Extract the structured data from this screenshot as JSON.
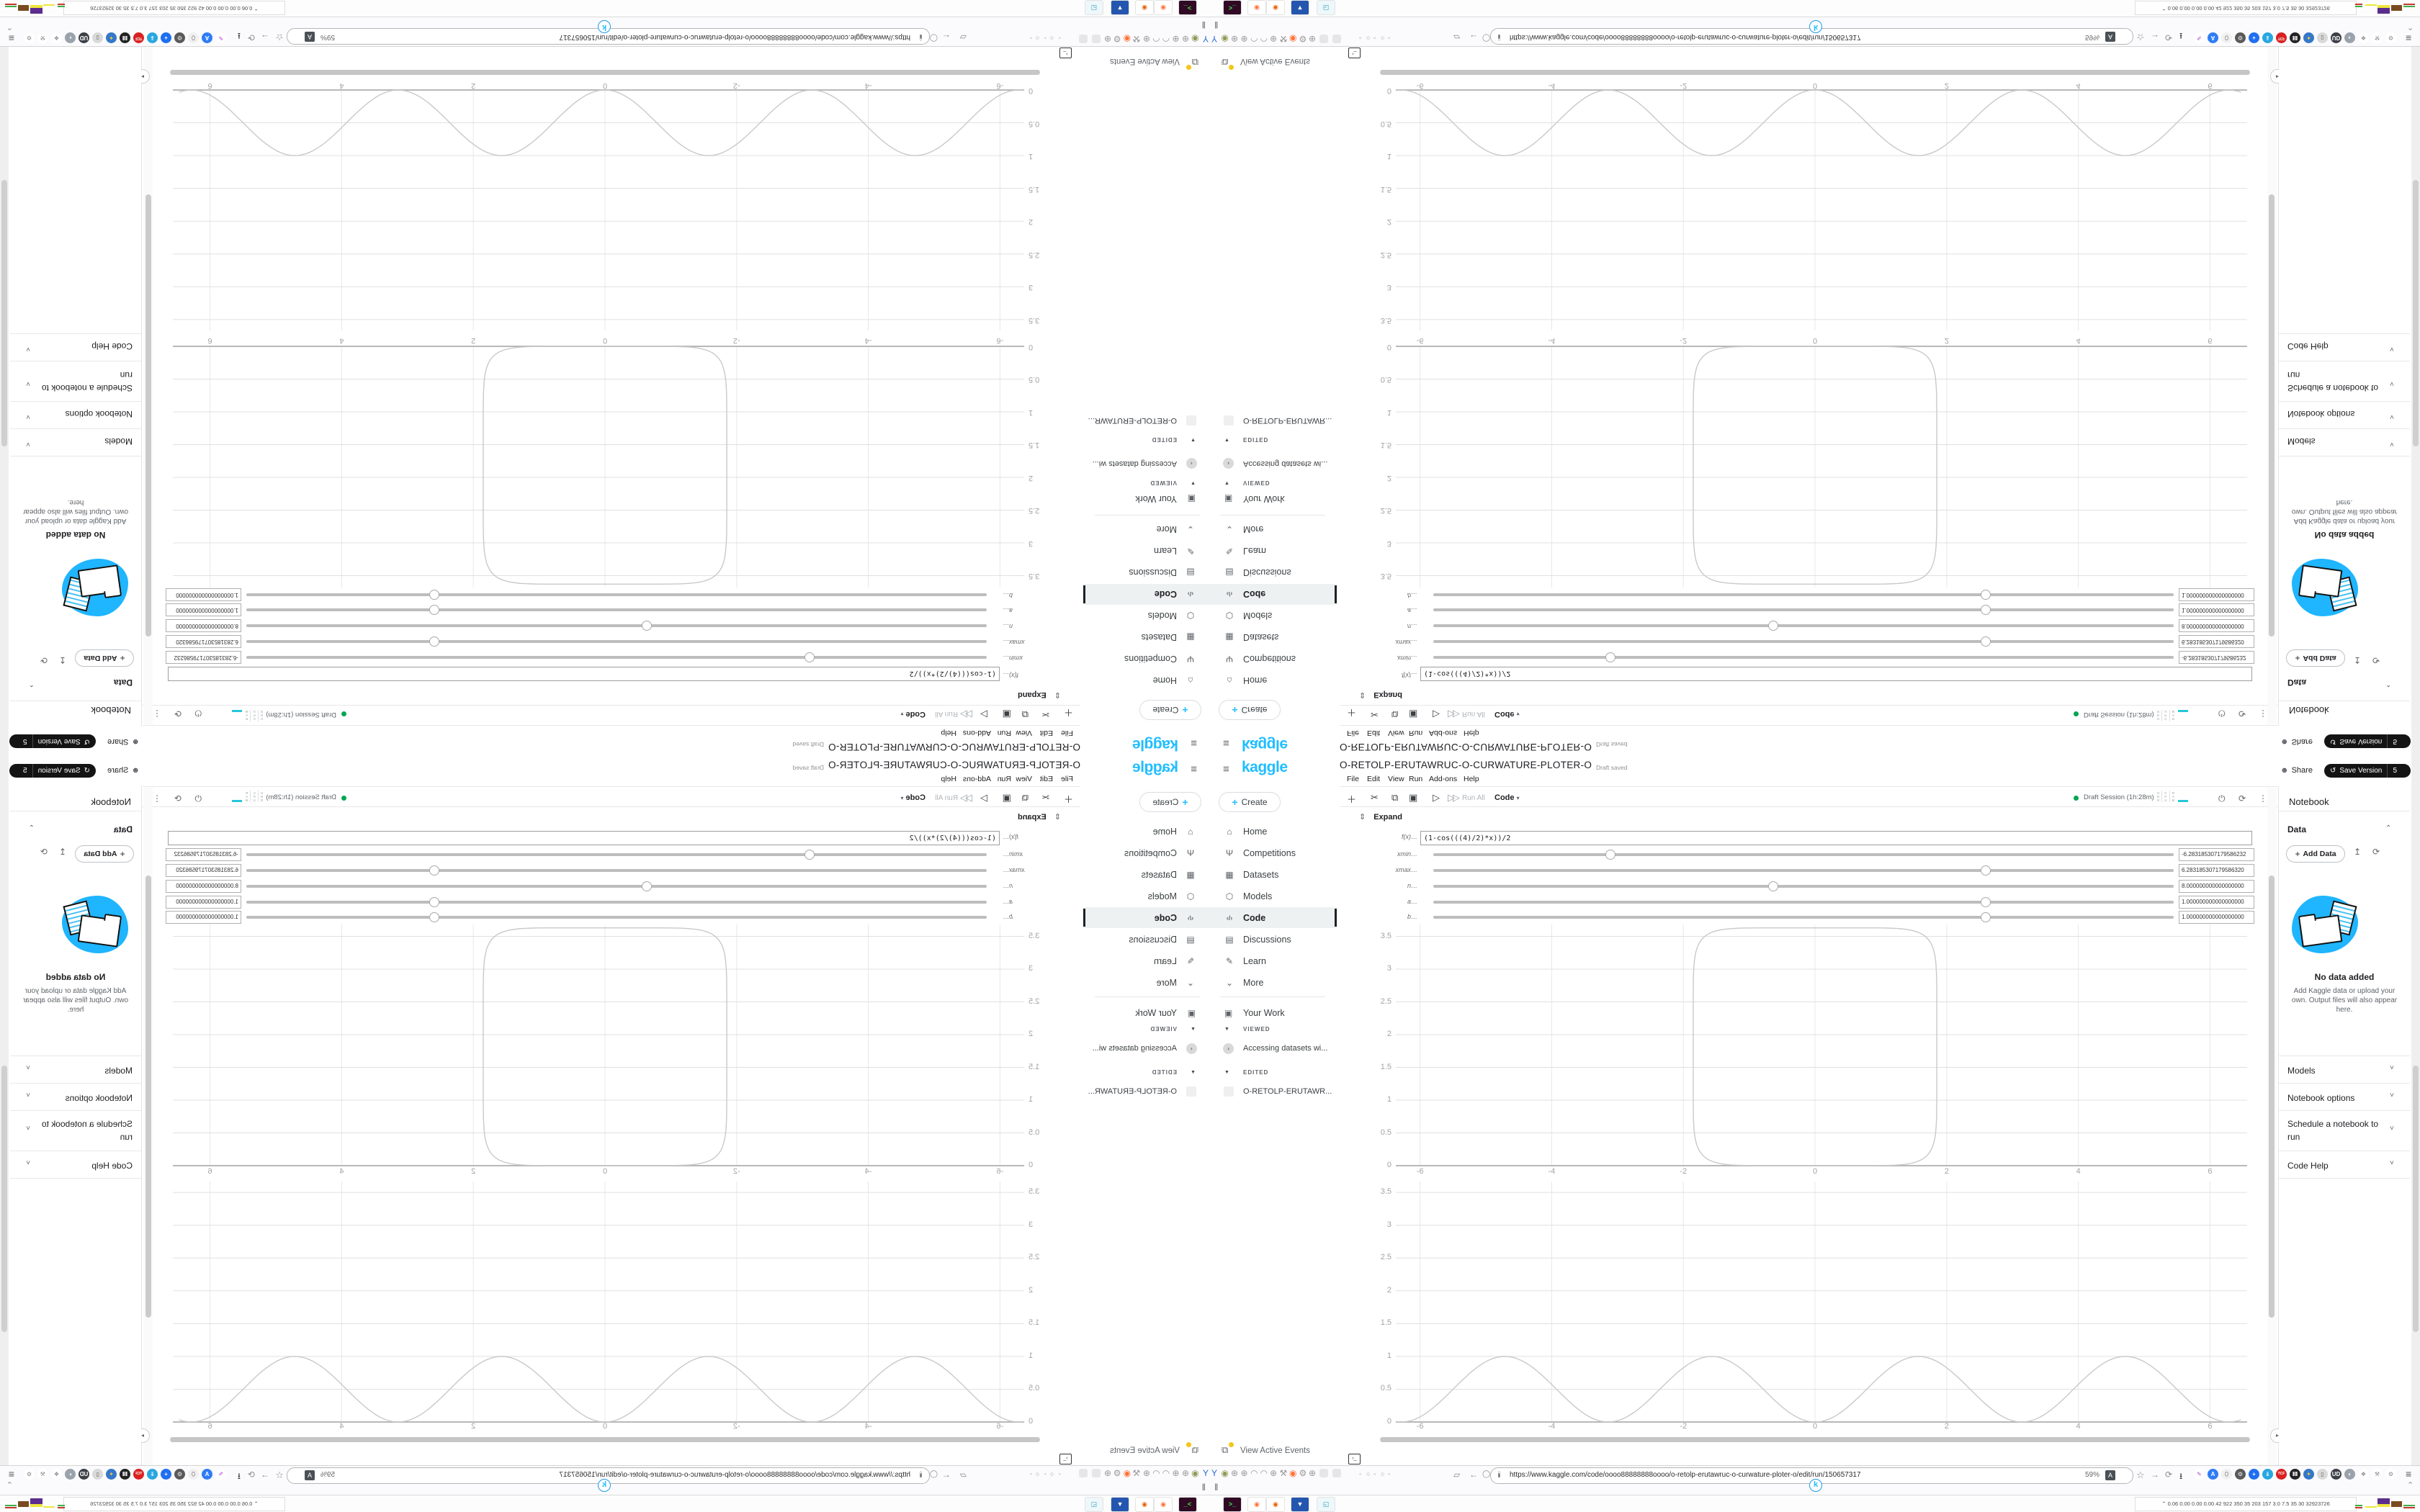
{
  "accent_color": "#20BEFF",
  "sidebar": {
    "logo": "kaggle",
    "create_label": "Create",
    "items": [
      {
        "label": "Home",
        "icon": "home-icon",
        "glyph": "⌂",
        "selected": false
      },
      {
        "label": "Competitions",
        "icon": "trophy-icon",
        "glyph": "Ψ",
        "selected": false
      },
      {
        "label": "Datasets",
        "icon": "datasets-icon",
        "glyph": "▦",
        "selected": false
      },
      {
        "label": "Models",
        "icon": "models-icon",
        "glyph": "⬡",
        "selected": false
      },
      {
        "label": "Code",
        "icon": "code-icon",
        "glyph": "‹/›",
        "selected": true
      },
      {
        "label": "Discussions",
        "icon": "discussions-icon",
        "glyph": "▤",
        "selected": false
      },
      {
        "label": "Learn",
        "icon": "learn-icon",
        "glyph": "✎",
        "selected": false
      },
      {
        "label": "More",
        "icon": "chevron-down-icon",
        "glyph": "⌄",
        "selected": false
      }
    ],
    "your_work": "Your Work",
    "viewed_header": "VIEWED",
    "viewed_item": "Accessing datasets wi...",
    "edited_header": "EDITED",
    "edited_item": "O-RETOLP-ERUTAWR...",
    "events_label": "View Active Events"
  },
  "header": {
    "title": "O-RETOLP-ERUTAWRUC-O-CURWATURE-PLOTER-O",
    "draft_status": "Draft saved",
    "menus": [
      "File",
      "Edit",
      "View",
      "Run",
      "Add-ons",
      "Help"
    ],
    "toolbar": [
      {
        "name": "add-cell-icon",
        "glyph": "＋"
      },
      {
        "name": "cut-icon",
        "glyph": "✂"
      },
      {
        "name": "copy-icon",
        "glyph": "⧉"
      },
      {
        "name": "paste-icon",
        "glyph": "▣"
      },
      {
        "name": "run-icon",
        "glyph": "▷"
      },
      {
        "name": "run-all-icon",
        "glyph": "▷▷"
      }
    ],
    "run_all_label": "Run All",
    "cell_type_label": "Code",
    "session_label": "Draft Session (1h:28m)",
    "meters": [
      "HDD",
      "CPU",
      "RAM"
    ],
    "share_label": "Share",
    "save_version_label": "Save Version",
    "version_count": "5"
  },
  "notebook_panel": {
    "title": "Notebook",
    "data_header": "Data",
    "add_data_label": "Add Data",
    "no_data": "No data added",
    "hint": "Add Kaggle data or upload your own. Output files will also appear here.",
    "sections": [
      "Models",
      "Notebook options",
      "Schedule a notebook to run",
      "Code Help"
    ]
  },
  "cell": {
    "expand_label": "Expand",
    "formula_value": "(1-cos(((4)/2)*x))/2",
    "widgets": [
      {
        "label": "f(x)…",
        "type": "text"
      },
      {
        "label": "xmin…",
        "type": "slider",
        "value": "-6.283185307179586232"
      },
      {
        "label": "xmax…",
        "type": "slider",
        "value": "6.283185307179586320"
      },
      {
        "label": "n…",
        "type": "slider",
        "value": "8.000000000000000000"
      },
      {
        "label": "a…",
        "type": "slider",
        "value": "1.000000000000000000"
      },
      {
        "label": "b…",
        "type": "slider",
        "value": "1.000000000000000000"
      }
    ]
  },
  "plots": {
    "xticks": [
      "-6",
      "-4",
      "-2",
      "0",
      "2",
      "4",
      "6"
    ],
    "xtick_values": [
      -6,
      -4,
      -2,
      0,
      2,
      4,
      6
    ],
    "yticks": [
      "3.5",
      "3",
      "2.5",
      "2",
      "1.5",
      "1",
      "0.5",
      "0"
    ],
    "ytick_values": [
      3.5,
      3,
      2.5,
      2,
      1.5,
      1,
      0.5,
      0
    ]
  },
  "chart_data": [
    {
      "type": "line",
      "title": "",
      "xlabel": "",
      "ylabel": "",
      "xlim": [
        -6.4,
        6.5
      ],
      "ylim": [
        0,
        3.7
      ],
      "xticks": [
        -6,
        -4,
        -2,
        0,
        2,
        4,
        6
      ],
      "yticks": [
        0,
        0.5,
        1,
        1.5,
        2,
        2.5,
        3,
        3.5
      ],
      "grid": true,
      "line_color": "#c9c9c9",
      "series": [
        {
          "name": "closed rounded-square curve",
          "shape": "superellipse-like closed curve, flat top and bottom, steep sides",
          "params": {
            "exponent": 8,
            "center_x": 0,
            "center_y": 1.815,
            "half_width": 1.85,
            "half_height": 1.815
          },
          "x_extent": [
            -1.85,
            1.85
          ],
          "y_extent": [
            0,
            3.63
          ]
        }
      ]
    },
    {
      "type": "line",
      "title": "",
      "xlabel": "",
      "ylabel": "",
      "xlim": [
        -6.4,
        6.5
      ],
      "ylim": [
        0,
        3.7
      ],
      "xticks": [
        -6,
        -4,
        -2,
        0,
        2,
        4,
        6
      ],
      "yticks": [
        0,
        0.5,
        1,
        1.5,
        2,
        2.5,
        3,
        3.5
      ],
      "grid": true,
      "line_color": "#c9c9c9",
      "series": [
        {
          "name": "sin^2(x)",
          "function": "(1-cos(2x))/2",
          "x": [
            -6.28,
            -5.5,
            -4.71,
            -3.93,
            -3.14,
            -2.36,
            -1.57,
            -0.79,
            0,
            0.79,
            1.57,
            2.36,
            3.14,
            3.93,
            4.71,
            5.5,
            6.28
          ],
          "y": [
            0,
            0.5,
            1,
            0.5,
            0,
            0.5,
            1,
            0.5,
            0,
            0.5,
            1,
            0.5,
            0,
            0.5,
            1,
            0.5,
            0
          ]
        }
      ]
    }
  ],
  "browser": {
    "url": "https://www.kaggle.com/code/oooo88888888oooo/o-retolp-erutawruc-o-curwature-ploter-o/edit/run/150657317",
    "zoom_level": "59%",
    "left_icons": [
      {
        "name": "funnel-icon",
        "glyph": "Y",
        "fg": "#2b6bd4"
      },
      {
        "name": "camera-circle-icon",
        "glyph": "◉",
        "fg": "#8f9a57"
      },
      {
        "name": "globe-icon",
        "glyph": "⊕",
        "fg": "#999999"
      },
      {
        "name": "globe-icon",
        "glyph": "⊕",
        "fg": "#999999"
      },
      {
        "name": "gauge-icon",
        "glyph": "◠",
        "fg": "#999999"
      },
      {
        "name": "gauge-icon",
        "glyph": "◠",
        "fg": "#999999"
      },
      {
        "name": "globe-icon",
        "glyph": "⊕",
        "fg": "#999999"
      },
      {
        "name": "wrench-icon",
        "glyph": "⚒",
        "fg": "#999999"
      },
      {
        "name": "firefox-icon",
        "glyph": "◉",
        "fg": "#ff7139"
      },
      {
        "name": "gear-icon",
        "glyph": "⚙",
        "fg": "#999999"
      },
      {
        "name": "globe-icon",
        "glyph": "⊕",
        "fg": "#999999"
      }
    ],
    "tab_dots": [
      "◦",
      "○",
      "◦",
      "○",
      "◦"
    ],
    "ext_icons": [
      {
        "name": "highlighter-icon",
        "glyph": "✎",
        "bg": "#ffffff",
        "fg": "#b04ad1"
      },
      {
        "name": "translate-icon",
        "glyph": "A",
        "bg": "#2f7cf6",
        "fg": "#ffffff"
      },
      {
        "name": "capsule-icon",
        "glyph": "⬯",
        "bg": "#f0f0f0",
        "fg": "#888888"
      },
      {
        "name": "gear-dark-icon",
        "glyph": "⚙",
        "bg": "#5a5a5a",
        "fg": "#eeeeee"
      },
      {
        "name": "plus-circle-icon",
        "glyph": "+",
        "bg": "#1f6ff0",
        "fg": "#ffffff"
      },
      {
        "name": "down-circle-icon",
        "glyph": "⇓",
        "bg": "#28a7e0",
        "fg": "#ffffff"
      },
      {
        "name": "adblock-icon",
        "glyph": "TCF",
        "bg": "#d92121",
        "fg": "#ffffff"
      },
      {
        "name": "columns-icon",
        "glyph": "Ⅲ",
        "bg": "#222222",
        "fg": "#ffffff"
      },
      {
        "name": "globe-color-icon",
        "glyph": "✦",
        "bg": "#3478c9",
        "fg": "#f5c63c"
      },
      {
        "name": "box-icon",
        "glyph": "▯",
        "bg": "#d9d9d9",
        "fg": "#666666"
      },
      {
        "name": "ud-icon",
        "glyph": "UD",
        "bg": "#3b3f46",
        "fg": "#ffffff"
      },
      {
        "name": "shield-icon",
        "glyph": "◐",
        "bg": "#9aa2ab",
        "fg": "#ffffff"
      },
      {
        "name": "puzzle-icon",
        "glyph": "❖",
        "bg": "#ffffff",
        "fg": "#8a8a8a"
      },
      {
        "name": "wrench-icon",
        "glyph": "⚒",
        "bg": "#ffffff",
        "fg": "#8a8a8a"
      },
      {
        "name": "gear-icon",
        "glyph": "⚙",
        "bg": "#ffffff",
        "fg": "#8a8a8a"
      }
    ],
    "favicon_letter": "k"
  },
  "taskbar": {
    "app_icons": [
      {
        "name": "terminal-icon",
        "glyph": "&gt;_",
        "bg": "#300a24",
        "fg": "#4be14b"
      },
      {
        "name": "firefox-icon",
        "glyph": "◉",
        "bg": "#ffffff",
        "fg": "#ff7139"
      },
      {
        "name": "firefox-icon",
        "glyph": "◉",
        "bg": "#ffffff",
        "fg": "#e66000"
      },
      {
        "name": "save-icon",
        "glyph": "▼",
        "bg": "#2456b0",
        "fg": "#ffffff"
      },
      {
        "name": "screenshot-icon",
        "glyph": "◱",
        "bg": "#eef7f9",
        "fg": "#2aa0b8"
      }
    ],
    "sysmon": "⌃  0.06 0.00 0.00 0.00  42  922  350  35  203  157  3.0  7.5  35  30  32923726",
    "graph_colors": [
      "#efe53a",
      "#3fae4a",
      "#5b2d8e",
      "#7a4a1f",
      "#c0392b"
    ]
  }
}
